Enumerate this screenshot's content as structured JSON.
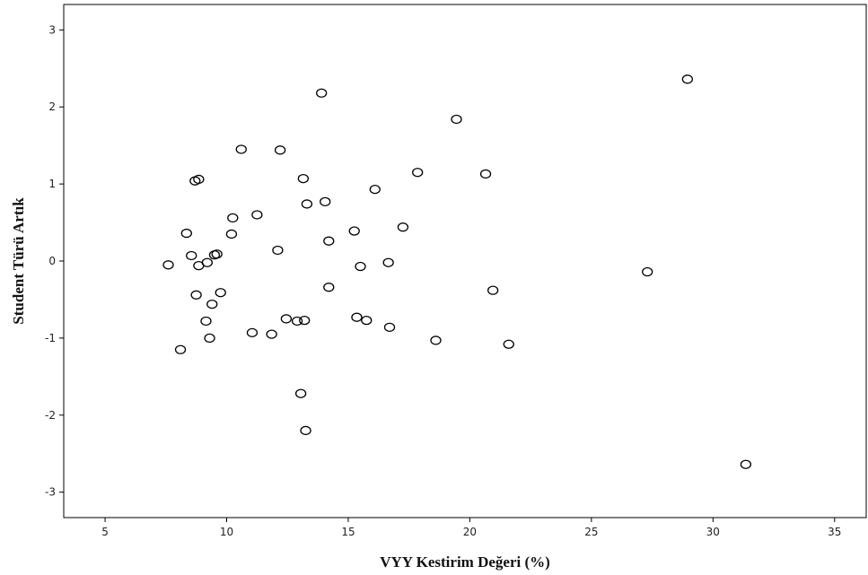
{
  "chart_data": {
    "type": "scatter",
    "title": "",
    "xlabel": "VYY Kestirim Değeri (%)",
    "ylabel": "Student Türü Artık",
    "xlim": [
      3.3,
      36.3
    ],
    "ylim": [
      -3.33,
      3.33
    ],
    "x_ticks": [
      5,
      10,
      15,
      20,
      25,
      30,
      35
    ],
    "y_ticks": [
      -3,
      -2,
      -1,
      0,
      1,
      2,
      3
    ],
    "grid": false,
    "marker": "open-circle",
    "marker_color": "#000000",
    "points": [
      {
        "x": 7.6,
        "y": -0.05
      },
      {
        "x": 8.1,
        "y": -1.15
      },
      {
        "x": 8.35,
        "y": 0.36
      },
      {
        "x": 8.55,
        "y": 0.07
      },
      {
        "x": 8.7,
        "y": 1.04
      },
      {
        "x": 8.75,
        "y": -0.44
      },
      {
        "x": 8.85,
        "y": -0.06
      },
      {
        "x": 8.85,
        "y": 1.06
      },
      {
        "x": 9.15,
        "y": -0.78
      },
      {
        "x": 9.2,
        "y": -0.02
      },
      {
        "x": 9.3,
        "y": -1.0
      },
      {
        "x": 9.4,
        "y": -0.56
      },
      {
        "x": 9.5,
        "y": 0.08
      },
      {
        "x": 9.6,
        "y": 0.09
      },
      {
        "x": 9.75,
        "y": -0.41
      },
      {
        "x": 10.2,
        "y": 0.35
      },
      {
        "x": 10.25,
        "y": 0.56
      },
      {
        "x": 10.6,
        "y": 1.45
      },
      {
        "x": 11.05,
        "y": -0.93
      },
      {
        "x": 11.25,
        "y": 0.6
      },
      {
        "x": 11.85,
        "y": -0.95
      },
      {
        "x": 12.1,
        "y": 0.14
      },
      {
        "x": 12.2,
        "y": 1.44
      },
      {
        "x": 12.45,
        "y": -0.75
      },
      {
        "x": 12.9,
        "y": -0.78
      },
      {
        "x": 13.05,
        "y": -1.72
      },
      {
        "x": 13.15,
        "y": 1.07
      },
      {
        "x": 13.2,
        "y": -0.77
      },
      {
        "x": 13.25,
        "y": -2.2
      },
      {
        "x": 13.3,
        "y": 0.74
      },
      {
        "x": 13.9,
        "y": 2.18
      },
      {
        "x": 14.05,
        "y": 0.77
      },
      {
        "x": 14.2,
        "y": 0.26
      },
      {
        "x": 14.2,
        "y": -0.34
      },
      {
        "x": 15.25,
        "y": 0.39
      },
      {
        "x": 15.35,
        "y": -0.73
      },
      {
        "x": 15.5,
        "y": -0.07
      },
      {
        "x": 15.75,
        "y": -0.77
      },
      {
        "x": 16.1,
        "y": 0.93
      },
      {
        "x": 16.65,
        "y": -0.02
      },
      {
        "x": 16.7,
        "y": -0.86
      },
      {
        "x": 17.25,
        "y": 0.44
      },
      {
        "x": 17.85,
        "y": 1.15
      },
      {
        "x": 18.6,
        "y": -1.03
      },
      {
        "x": 19.45,
        "y": 1.84
      },
      {
        "x": 20.65,
        "y": 1.13
      },
      {
        "x": 20.95,
        "y": -0.38
      },
      {
        "x": 21.6,
        "y": -1.08
      },
      {
        "x": 27.3,
        "y": -0.14
      },
      {
        "x": 28.95,
        "y": 2.36
      },
      {
        "x": 31.35,
        "y": -2.64
      }
    ]
  }
}
